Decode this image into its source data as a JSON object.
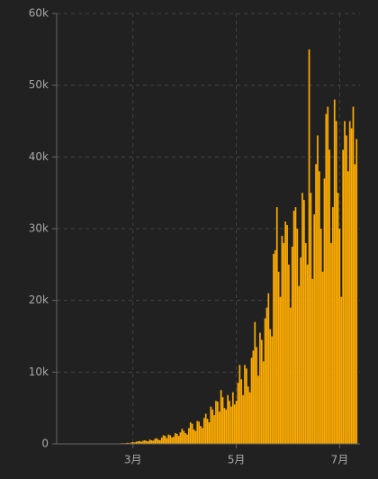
{
  "chart_data": {
    "type": "bar",
    "color": "#ffad00",
    "grid": true,
    "xlim": [
      16,
      195
    ],
    "xticks": [
      {
        "value": 61,
        "label": "3月"
      },
      {
        "value": 122,
        "label": "5月"
      },
      {
        "value": 183,
        "label": "7月"
      }
    ],
    "ylim": [
      0,
      60000
    ],
    "yticks": [
      0,
      {
        "value": 10000,
        "label": "10k"
      },
      {
        "value": 20000,
        "label": "20k"
      },
      {
        "value": 30000,
        "label": "30k"
      },
      {
        "value": 40000,
        "label": "40k"
      },
      {
        "value": 50000,
        "label": "50k"
      },
      {
        "value": 60000,
        "label": "60k"
      }
    ],
    "x": [
      16,
      17,
      18,
      19,
      20,
      21,
      22,
      23,
      24,
      25,
      26,
      27,
      28,
      29,
      30,
      31,
      32,
      33,
      34,
      35,
      36,
      37,
      38,
      39,
      40,
      41,
      42,
      43,
      44,
      45,
      46,
      47,
      48,
      49,
      50,
      51,
      52,
      53,
      54,
      55,
      56,
      57,
      58,
      59,
      60,
      61,
      62,
      63,
      64,
      65,
      66,
      67,
      68,
      69,
      70,
      71,
      72,
      73,
      74,
      75,
      76,
      77,
      78,
      79,
      80,
      81,
      82,
      83,
      84,
      85,
      86,
      87,
      88,
      89,
      90,
      91,
      92,
      93,
      94,
      95,
      96,
      97,
      98,
      99,
      100,
      101,
      102,
      103,
      104,
      105,
      106,
      107,
      108,
      109,
      110,
      111,
      112,
      113,
      114,
      115,
      116,
      117,
      118,
      119,
      120,
      121,
      122,
      123,
      124,
      125,
      126,
      127,
      128,
      129,
      130,
      131,
      132,
      133,
      134,
      135,
      136,
      137,
      138,
      139,
      140,
      141,
      142,
      143,
      144,
      145,
      146,
      147,
      148,
      149,
      150,
      151,
      152,
      153,
      154,
      155,
      156,
      157,
      158,
      159,
      160,
      161,
      162,
      163,
      164,
      165,
      166,
      167,
      168,
      169,
      170,
      171,
      172,
      173,
      174,
      175,
      176,
      177,
      178,
      179,
      180,
      181,
      182,
      183,
      184,
      185,
      186,
      187,
      188,
      189,
      190,
      191,
      192,
      193
    ],
    "values": [
      0,
      0,
      0,
      0,
      0,
      0,
      0,
      0,
      0,
      0,
      10,
      0,
      0,
      0,
      0,
      10,
      0,
      0,
      20,
      0,
      0,
      0,
      10,
      0,
      0,
      20,
      10,
      0,
      30,
      10,
      20,
      30,
      20,
      40,
      30,
      50,
      60,
      40,
      80,
      100,
      80,
      120,
      150,
      100,
      200,
      250,
      200,
      300,
      350,
      400,
      300,
      450,
      500,
      400,
      350,
      600,
      500,
      450,
      700,
      800,
      600,
      500,
      900,
      1200,
      1100,
      800,
      1300,
      1200,
      900,
      1000,
      1500,
      1400,
      1100,
      1600,
      2100,
      1800,
      1500,
      1300,
      2200,
      3000,
      2800,
      2000,
      1800,
      3200,
      3100,
      2500,
      2200,
      3600,
      4200,
      3500,
      3000,
      5200,
      4800,
      4000,
      6000,
      5900,
      4500,
      7500,
      6500,
      5000,
      4800,
      6800,
      6000,
      5200,
      7200,
      5500,
      6000,
      8500,
      11000,
      9000,
      6800,
      11000,
      10500,
      8000,
      7200,
      12000,
      13000,
      17000,
      13500,
      9500,
      15500,
      14500,
      11500,
      17500,
      19000,
      21000,
      16000,
      15000,
      26500,
      27000,
      33000,
      24000,
      20500,
      29000,
      28000,
      31000,
      30500,
      25000,
      19000,
      27500,
      32500,
      33000,
      30000,
      22000,
      26000,
      35000,
      34000,
      28000,
      25000,
      55000,
      35000,
      23000,
      32000,
      39000,
      43000,
      38000,
      30000,
      24000,
      37000,
      46000,
      47000,
      41000,
      28000,
      33000,
      48000,
      45000,
      35000,
      30000,
      20500,
      41000,
      45000,
      43000,
      38000,
      45000,
      44000,
      47000,
      39000,
      42500
    ]
  }
}
